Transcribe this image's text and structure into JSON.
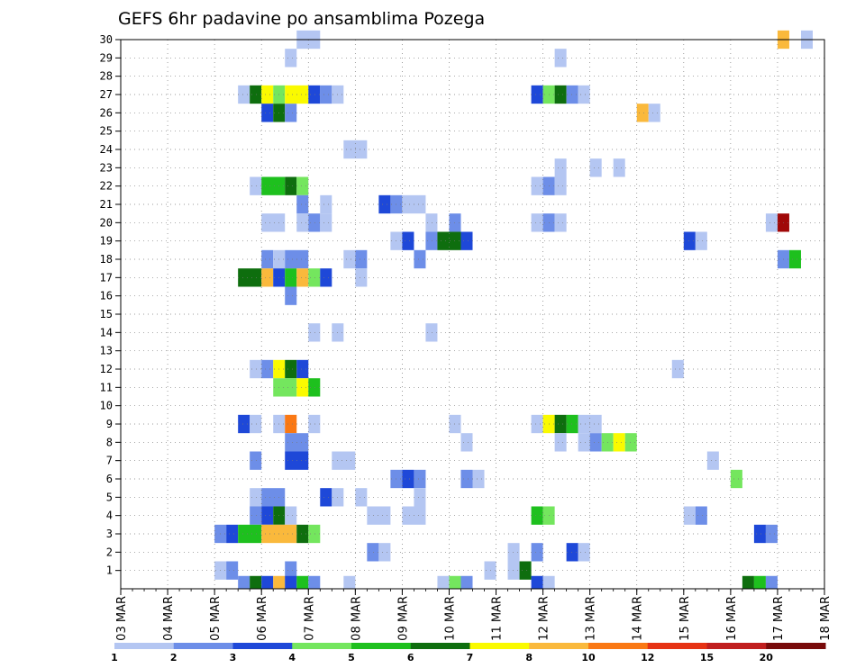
{
  "chart_data": {
    "type": "heatmap",
    "title": "GEFS 6hr padavine po ansamblima Pozega",
    "xlabel": "",
    "ylabel": "",
    "x_tick_labels": [
      "03 MAR",
      "04 MAR",
      "05 MAR",
      "06 MAR",
      "07 MAR",
      "08 MAR",
      "09 MAR",
      "10 MAR",
      "11 MAR",
      "12 MAR",
      "13 MAR",
      "14 MAR",
      "15 MAR",
      "16 MAR",
      "17 MAR",
      "18 MAR"
    ],
    "x_range_days": [
      0,
      15
    ],
    "y_members": [
      1,
      2,
      3,
      4,
      5,
      6,
      7,
      8,
      9,
      10,
      11,
      12,
      13,
      14,
      15,
      16,
      17,
      18,
      19,
      20,
      21,
      22,
      23,
      24,
      25,
      26,
      27,
      28,
      29,
      30
    ],
    "grid": true,
    "legend": {
      "position": "bottom",
      "labels": [
        "1",
        "2",
        "3",
        "4",
        "5",
        "6",
        "7",
        "8",
        "10",
        "12",
        "15",
        "20"
      ],
      "colors": [
        "#b4c6f2",
        "#6d8ee8",
        "#1e48d8",
        "#74e65e",
        "#1ec01e",
        "#0e6e0e",
        "#fafa00",
        "#fab93c",
        "#fa7814",
        "#e63214",
        "#c01e1e",
        "#780a0a"
      ]
    },
    "colors": {
      "c1": "#b4c6f2",
      "c2": "#6d8ee8",
      "c3": "#1e48d8",
      "c4": "#74e65e",
      "c5": "#1ec01e",
      "c6": "#0e6e0e",
      "c7": "#fafa00",
      "c8": "#fab93c",
      "c9": "#fa7814",
      "c11": "#a00808"
    },
    "cells_note_unit": "each cell = [member, start_day_offset_from_03_MAR, duration_days, precip_class]",
    "cells": [
      [
        30,
        3.75,
        0.5,
        1
      ],
      [
        30,
        14,
        0.25,
        8
      ],
      [
        30,
        14.5,
        0.25,
        1
      ],
      [
        29,
        3.5,
        0.25,
        1
      ],
      [
        29,
        9.25,
        0.25,
        1
      ],
      [
        27,
        2.5,
        0.25,
        1
      ],
      [
        27,
        2.75,
        0.25,
        6
      ],
      [
        27,
        3,
        0.25,
        7
      ],
      [
        27,
        3.25,
        0.25,
        4
      ],
      [
        27,
        3.5,
        0.5,
        7
      ],
      [
        27,
        4,
        0.25,
        3
      ],
      [
        27,
        4.25,
        0.25,
        2
      ],
      [
        27,
        4.5,
        0.25,
        1
      ],
      [
        27,
        8.75,
        0.25,
        3
      ],
      [
        27,
        9,
        0.25,
        4
      ],
      [
        27,
        9.25,
        0.25,
        6
      ],
      [
        27,
        9.5,
        0.25,
        2
      ],
      [
        27,
        9.75,
        0.25,
        1
      ],
      [
        26,
        3,
        0.25,
        3
      ],
      [
        26,
        3.25,
        0.25,
        6
      ],
      [
        26,
        3.5,
        0.25,
        2
      ],
      [
        26,
        11,
        0.25,
        8
      ],
      [
        26,
        11.25,
        0.25,
        1
      ],
      [
        24,
        4.75,
        0.5,
        1
      ],
      [
        23,
        9.25,
        0.25,
        1
      ],
      [
        23,
        10,
        0.25,
        1
      ],
      [
        23,
        10.5,
        0.25,
        1
      ],
      [
        22,
        2.75,
        0.25,
        1
      ],
      [
        22,
        3,
        0.5,
        5
      ],
      [
        22,
        3.5,
        0.25,
        6
      ],
      [
        22,
        3.75,
        0.25,
        4
      ],
      [
        22,
        8.75,
        0.25,
        1
      ],
      [
        22,
        9,
        0.25,
        2
      ],
      [
        22,
        9.25,
        0.25,
        1
      ],
      [
        21,
        3.75,
        0.25,
        2
      ],
      [
        21,
        4.25,
        0.25,
        1
      ],
      [
        21,
        5.5,
        0.25,
        3
      ],
      [
        21,
        5.75,
        0.25,
        2
      ],
      [
        21,
        6,
        0.5,
        1
      ],
      [
        20,
        3,
        0.5,
        1
      ],
      [
        20,
        3.75,
        0.25,
        1
      ],
      [
        20,
        4,
        0.25,
        2
      ],
      [
        20,
        4.25,
        0.25,
        1
      ],
      [
        20,
        6.5,
        0.25,
        1
      ],
      [
        20,
        7,
        0.25,
        2
      ],
      [
        20,
        8.75,
        0.25,
        1
      ],
      [
        20,
        9,
        0.25,
        2
      ],
      [
        20,
        9.25,
        0.25,
        1
      ],
      [
        20,
        13.75,
        0.25,
        1
      ],
      [
        20,
        14,
        0.25,
        11
      ],
      [
        19,
        5.75,
        0.25,
        1
      ],
      [
        19,
        6,
        0.25,
        3
      ],
      [
        19,
        6.5,
        0.25,
        2
      ],
      [
        19,
        6.75,
        0.5,
        6
      ],
      [
        19,
        7.25,
        0.25,
        3
      ],
      [
        19,
        12,
        0.25,
        3
      ],
      [
        19,
        12.25,
        0.25,
        1
      ],
      [
        18,
        3,
        0.25,
        2
      ],
      [
        18,
        3.25,
        0.25,
        1
      ],
      [
        18,
        3.5,
        0.5,
        2
      ],
      [
        18,
        4.75,
        0.25,
        1
      ],
      [
        18,
        5,
        0.25,
        2
      ],
      [
        18,
        6.25,
        0.25,
        2
      ],
      [
        18,
        14,
        0.25,
        2
      ],
      [
        18,
        14.25,
        0.25,
        5
      ],
      [
        17,
        2.5,
        0.5,
        6
      ],
      [
        17,
        3,
        0.25,
        8
      ],
      [
        17,
        3.25,
        0.25,
        3
      ],
      [
        17,
        3.5,
        0.25,
        5
      ],
      [
        17,
        3.75,
        0.25,
        8
      ],
      [
        17,
        4,
        0.25,
        4
      ],
      [
        17,
        4.25,
        0.25,
        3
      ],
      [
        17,
        5,
        0.25,
        1
      ],
      [
        16,
        3.5,
        0.25,
        2
      ],
      [
        14,
        4,
        0.25,
        1
      ],
      [
        14,
        4.5,
        0.25,
        1
      ],
      [
        14,
        6.5,
        0.25,
        1
      ],
      [
        12,
        2.75,
        0.25,
        1
      ],
      [
        12,
        3,
        0.25,
        2
      ],
      [
        12,
        3.25,
        0.25,
        7
      ],
      [
        12,
        3.5,
        0.25,
        6
      ],
      [
        12,
        3.75,
        0.25,
        3
      ],
      [
        12,
        11.75,
        0.25,
        1
      ],
      [
        11,
        3.25,
        0.5,
        4
      ],
      [
        11,
        3.75,
        0.25,
        7
      ],
      [
        11,
        4,
        0.25,
        5
      ],
      [
        9,
        2.5,
        0.25,
        3
      ],
      [
        9,
        2.75,
        0.25,
        1
      ],
      [
        9,
        3.25,
        0.25,
        1
      ],
      [
        9,
        3.5,
        0.25,
        9
      ],
      [
        9,
        4,
        0.25,
        1
      ],
      [
        9,
        7,
        0.25,
        1
      ],
      [
        9,
        8.75,
        0.25,
        1
      ],
      [
        9,
        9,
        0.25,
        7
      ],
      [
        9,
        9.25,
        0.25,
        6
      ],
      [
        9,
        9.5,
        0.25,
        5
      ],
      [
        9,
        9.75,
        0.5,
        1
      ],
      [
        8,
        3.5,
        0.5,
        2
      ],
      [
        8,
        7.25,
        0.25,
        1
      ],
      [
        8,
        9.25,
        0.25,
        1
      ],
      [
        8,
        9.75,
        0.25,
        1
      ],
      [
        8,
        10,
        0.25,
        2
      ],
      [
        8,
        10.25,
        0.25,
        4
      ],
      [
        8,
        10.5,
        0.25,
        7
      ],
      [
        8,
        10.75,
        0.25,
        4
      ],
      [
        7,
        2.75,
        0.25,
        2
      ],
      [
        7,
        3.5,
        0.5,
        3
      ],
      [
        7,
        4.5,
        0.5,
        1
      ],
      [
        7,
        12.5,
        0.25,
        1
      ],
      [
        6,
        5.75,
        0.25,
        2
      ],
      [
        6,
        6,
        0.25,
        3
      ],
      [
        6,
        6.25,
        0.25,
        2
      ],
      [
        6,
        7.25,
        0.25,
        2
      ],
      [
        6,
        7.5,
        0.25,
        1
      ],
      [
        6,
        13,
        0.25,
        4
      ],
      [
        5,
        2.75,
        0.25,
        1
      ],
      [
        5,
        3,
        0.5,
        2
      ],
      [
        5,
        4.25,
        0.25,
        3
      ],
      [
        5,
        4.5,
        0.25,
        1
      ],
      [
        5,
        5,
        0.25,
        1
      ],
      [
        5,
        6.25,
        0.25,
        1
      ],
      [
        4,
        2.75,
        0.25,
        2
      ],
      [
        4,
        3,
        0.25,
        3
      ],
      [
        4,
        3.25,
        0.25,
        6
      ],
      [
        4,
        3.5,
        0.25,
        1
      ],
      [
        4,
        5.25,
        0.5,
        1
      ],
      [
        4,
        6,
        0.5,
        1
      ],
      [
        4,
        8.75,
        0.25,
        5
      ],
      [
        4,
        9,
        0.25,
        4
      ],
      [
        4,
        12,
        0.25,
        1
      ],
      [
        4,
        12.25,
        0.25,
        2
      ],
      [
        3,
        2,
        0.25,
        2
      ],
      [
        3,
        2.25,
        0.25,
        3
      ],
      [
        3,
        2.5,
        0.5,
        5
      ],
      [
        3,
        3,
        0.75,
        8
      ],
      [
        3,
        3.75,
        0.25,
        6
      ],
      [
        3,
        4,
        0.25,
        4
      ],
      [
        3,
        13.5,
        0.25,
        3
      ],
      [
        3,
        13.75,
        0.25,
        2
      ],
      [
        2,
        5.25,
        0.25,
        2
      ],
      [
        2,
        5.5,
        0.25,
        1
      ],
      [
        2,
        8.25,
        0.25,
        1
      ],
      [
        2,
        8.75,
        0.25,
        2
      ],
      [
        2,
        9.5,
        0.25,
        3
      ],
      [
        2,
        9.75,
        0.25,
        1
      ],
      [
        1,
        2,
        0.25,
        1
      ],
      [
        1,
        2.25,
        0.25,
        2
      ],
      [
        1,
        3.5,
        0.25,
        2
      ],
      [
        1,
        7.75,
        0.25,
        1
      ],
      [
        1,
        8.25,
        0.25,
        1
      ],
      [
        1,
        8.5,
        0.25,
        6
      ],
      [
        0.2,
        2.5,
        0.25,
        2
      ],
      [
        0.2,
        2.75,
        0.25,
        6
      ],
      [
        0.2,
        3,
        0.25,
        3
      ],
      [
        0.2,
        3.25,
        0.25,
        8
      ],
      [
        0.2,
        3.5,
        0.25,
        3
      ],
      [
        0.2,
        3.75,
        0.25,
        5
      ],
      [
        0.2,
        4,
        0.25,
        2
      ],
      [
        0.2,
        4.75,
        0.25,
        1
      ],
      [
        0.2,
        6.75,
        0.25,
        1
      ],
      [
        0.2,
        7,
        0.25,
        4
      ],
      [
        0.2,
        7.25,
        0.25,
        2
      ],
      [
        0.2,
        8.75,
        0.25,
        3
      ],
      [
        0.2,
        9,
        0.25,
        1
      ],
      [
        0.2,
        13.25,
        0.25,
        6
      ],
      [
        0.2,
        13.5,
        0.25,
        5
      ],
      [
        0.2,
        13.75,
        0.25,
        2
      ]
    ]
  }
}
